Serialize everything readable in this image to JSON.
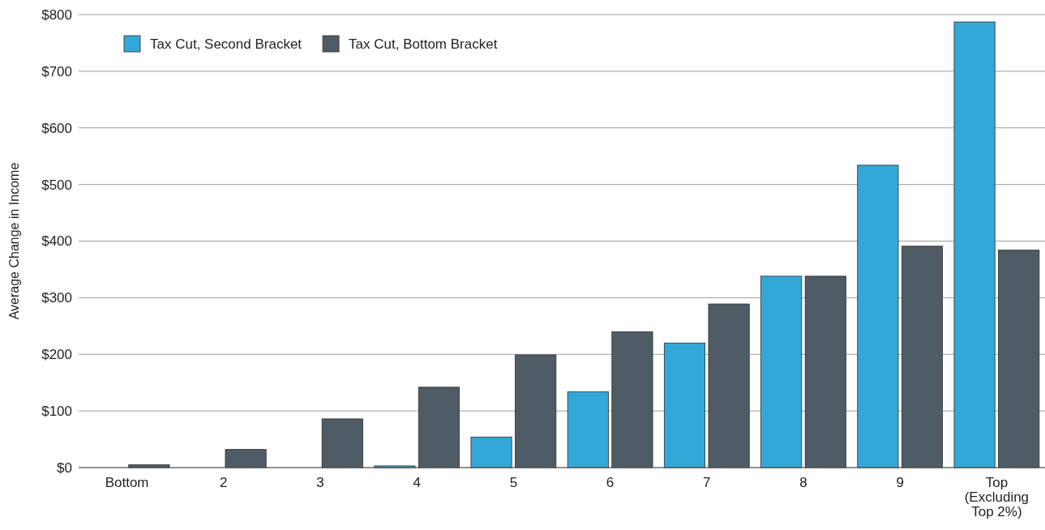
{
  "chart_data": {
    "type": "bar",
    "ylabel": "Average Change in Income",
    "categories": [
      "Bottom",
      "2",
      "3",
      "4",
      "5",
      "6",
      "7",
      "8",
      "9",
      "Top (Excluding Top 2%)"
    ],
    "series": [
      {
        "name": "Tax Cut, Second Bracket",
        "color": "#33a8d8",
        "values": [
          0,
          0,
          0,
          3,
          54,
          134,
          220,
          338,
          534,
          787
        ]
      },
      {
        "name": "Tax Cut, Bottom Bracket",
        "color": "#505c65",
        "values": [
          5,
          32,
          86,
          142,
          199,
          240,
          289,
          338,
          391,
          384
        ]
      }
    ],
    "ylim": [
      0,
      800
    ],
    "yticks": [
      {
        "value": 0,
        "label": "$0"
      },
      {
        "value": 100,
        "label": "$100"
      },
      {
        "value": 200,
        "label": "$200"
      },
      {
        "value": 300,
        "label": "$300"
      },
      {
        "value": 400,
        "label": "$400"
      },
      {
        "value": 500,
        "label": "$500"
      },
      {
        "value": 600,
        "label": "$600"
      },
      {
        "value": 700,
        "label": "$700"
      },
      {
        "value": 800,
        "label": "$800"
      }
    ],
    "grid": "y",
    "legend": "top left"
  }
}
